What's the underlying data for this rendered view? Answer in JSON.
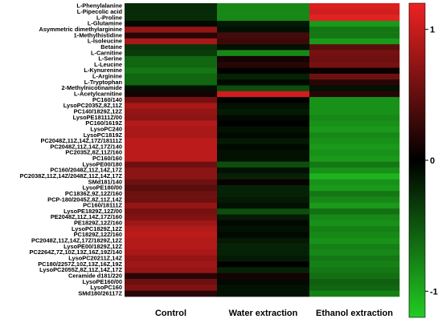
{
  "chart_data": {
    "type": "heatmap",
    "columns": [
      "Control",
      "Water extraction",
      "Ethanol extraction"
    ],
    "rows": [
      "L-Phenylalanine",
      "L-Pipecolic acid",
      "L-Proline",
      "L-Glutamine",
      "Asymmetric dimethylarginine",
      "1-Methylhistidine",
      "L-Isoleucine",
      "Betaine",
      "L-Carnitine",
      "L-Serine",
      "L-Leucine",
      "L-Kynurenine",
      "L-Arginine",
      "L-Tryptophan",
      "2-Methylnicotinamide",
      "L-Acetylcarnitine",
      "PC160/140",
      "LysoPC2035Z,8Z,11Z",
      "PC140/1829Z,12Z",
      "LysoPE18111Z/00",
      "PC160/1619Z",
      "LysoPC240",
      "LysoPC1819Z",
      "PC2048Z,11Z,14Z,17Z/18111Z",
      "PC2048Z,11Z,14Z,17Z/140",
      "PC2035Z,8Z,11Z/160",
      "PC160/160",
      "LysoPE00/180",
      "PC160/2048Z,11Z,14Z,17Z",
      "PC2038Z,11Z,14Z/2048Z,11Z,14Z,17Z",
      "SMd181/140",
      "LysoPE180/00",
      "PC1836Z,9Z,12Z/160",
      "PCP-180/2045Z,8Z,11Z,14Z",
      "PC160/18111Z",
      "LysoPE1829Z,12Z/00",
      "PE2048Z,11Z,14Z,17Z/160",
      "PE1829Z,12Z/160",
      "LysoPC1829Z,12Z",
      "PC1829Z,12Z/160",
      "PC2048Z,11Z,14Z,17Z/1829Z,12Z",
      "LysoPE00/1829Z,12Z",
      "PC2264Z,7Z,10Z,13Z,16Z,19Z/140",
      "LysoPC20211Z,14Z",
      "PC180/2257Z,10Z,13Z,16Z,19Z",
      "LysoPC2055Z,8Z,11Z,14Z,17Z",
      "Ceramide d181/220",
      "LysoPE160/00",
      "LysoPC160",
      "SMd180/26117Z"
    ],
    "values": [
      [
        -0.25,
        -0.8,
        1.1
      ],
      [
        -0.25,
        -0.8,
        1.05
      ],
      [
        -0.25,
        -0.8,
        1.15
      ],
      [
        -0.05,
        -0.15,
        -0.9
      ],
      [
        0.75,
        -0.1,
        -0.7
      ],
      [
        0.2,
        0.35,
        -0.7
      ],
      [
        0.85,
        0.3,
        -0.9
      ],
      [
        -0.3,
        -0.1,
        0.45
      ],
      [
        -0.35,
        -0.8,
        0.6
      ],
      [
        -0.6,
        0.1,
        0.55
      ],
      [
        -0.6,
        0.2,
        0.6
      ],
      [
        -0.7,
        0.0,
        0.05
      ],
      [
        -0.6,
        -0.2,
        0.55
      ],
      [
        -0.6,
        -0.05,
        0.2
      ],
      [
        -0.1,
        -0.45,
        -0.1
      ],
      [
        0.1,
        1.05,
        0.2
      ],
      [
        0.6,
        0.0,
        -0.85
      ],
      [
        0.85,
        -0.1,
        -0.85
      ],
      [
        0.75,
        -0.15,
        -0.85
      ],
      [
        0.7,
        -0.05,
        -0.8
      ],
      [
        0.9,
        0.0,
        -0.85
      ],
      [
        0.85,
        -0.1,
        -0.9
      ],
      [
        0.85,
        -0.05,
        -0.8
      ],
      [
        0.95,
        -0.15,
        -0.85
      ],
      [
        0.95,
        -0.05,
        -0.9
      ],
      [
        0.95,
        -0.1,
        -0.85
      ],
      [
        0.95,
        -0.1,
        -0.9
      ],
      [
        0.55,
        -0.45,
        -0.7
      ],
      [
        0.7,
        -0.1,
        -0.85
      ],
      [
        0.7,
        -0.2,
        -1.05
      ],
      [
        0.55,
        0.05,
        -0.85
      ],
      [
        0.45,
        -0.2,
        -0.9
      ],
      [
        0.55,
        -0.2,
        -0.7
      ],
      [
        0.55,
        -0.15,
        -0.8
      ],
      [
        0.75,
        -0.1,
        -0.9
      ],
      [
        0.6,
        -0.45,
        -0.65
      ],
      [
        0.65,
        -0.15,
        -0.8
      ],
      [
        0.8,
        -0.05,
        -0.85
      ],
      [
        0.9,
        -0.1,
        -0.75
      ],
      [
        0.95,
        -0.05,
        -0.8
      ],
      [
        0.9,
        -0.15,
        -0.85
      ],
      [
        0.9,
        -0.2,
        -0.75
      ],
      [
        0.85,
        -0.2,
        -0.8
      ],
      [
        0.75,
        -0.15,
        -0.7
      ],
      [
        0.8,
        0.0,
        -0.75
      ],
      [
        0.75,
        -0.2,
        -0.7
      ],
      [
        0.2,
        0.1,
        -0.65
      ],
      [
        0.55,
        -0.05,
        -0.55
      ],
      [
        0.65,
        -0.1,
        -0.6
      ],
      [
        0.2,
        -0.1,
        -0.75
      ]
    ],
    "colorbar": {
      "min": -1.2,
      "max": 1.2,
      "ticks": [
        1,
        0,
        -1
      ],
      "tick_labels": [
        "1",
        "0",
        "-1"
      ],
      "low_color": "#22cc22",
      "mid_color": "#000000",
      "high_color": "#ee2222"
    }
  }
}
